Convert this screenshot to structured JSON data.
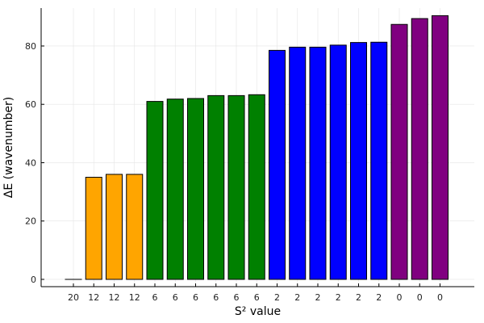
{
  "chart_data": {
    "type": "bar",
    "title": "",
    "xlabel": "S² value",
    "ylabel": "ΔE (wavenumber)",
    "categories": [
      "20",
      "12",
      "12",
      "12",
      "6",
      "6",
      "6",
      "6",
      "6",
      "6",
      "2",
      "2",
      "2",
      "2",
      "2",
      "2",
      "0",
      "0",
      "0"
    ],
    "values": [
      0,
      35,
      36,
      36,
      61,
      61.8,
      62,
      63,
      63,
      63.3,
      78.5,
      79.6,
      79.6,
      80.3,
      81.2,
      81.3,
      87.4,
      89.4,
      90.4
    ],
    "colors": [
      "#000000",
      "#FFA500",
      "#FFA500",
      "#FFA500",
      "#008000",
      "#008000",
      "#008000",
      "#008000",
      "#008000",
      "#008000",
      "#0000FF",
      "#0000FF",
      "#0000FF",
      "#0000FF",
      "#0000FF",
      "#0000FF",
      "#800080",
      "#800080",
      "#800080"
    ],
    "ylim": [
      -2.5,
      93
    ],
    "yticks": [
      0,
      20,
      40,
      60,
      80
    ],
    "grid": true,
    "legend": "none"
  }
}
